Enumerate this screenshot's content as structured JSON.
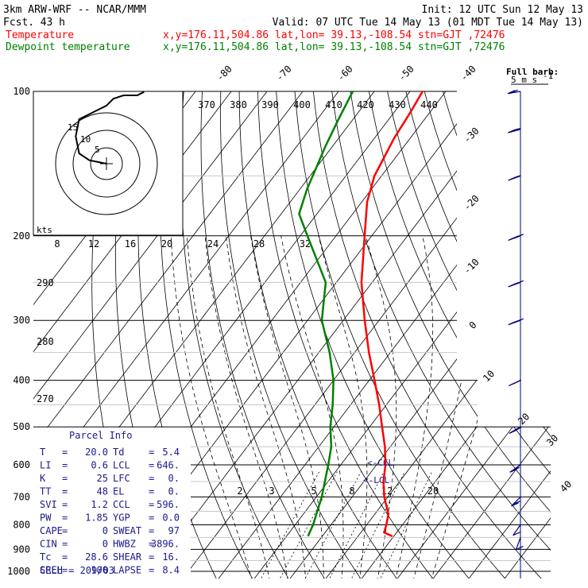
{
  "header": {
    "title": "3km ARW-WRF -- NCAR/MMM",
    "init": "Init: 12 UTC Sun 12 May 13",
    "fcst_label": "Fcst.",
    "fcst_value": "43 h",
    "valid": "Valid: 07 UTC Tue 14 May 13 (01 MDT Tue 14 May 13)",
    "temp_label": "Temperature",
    "dew_label": "Dewpoint temperature",
    "temp_info": "x,y=176.11,504.86   lat,lon= 39.13,-108.54  stn=GJT ,72476",
    "dew_info": "x,y=176.11,504.86   lat,lon= 39.13,-108.54  stn=GJT ,72476"
  },
  "barb_legend": {
    "line1": "Full barb:",
    "line2": "5 m s",
    "sup": "-1"
  },
  "hodograph": {
    "units_label": "kts",
    "ring_labels": [
      "5",
      "10",
      "15"
    ],
    "trace_uv": [
      [
        0,
        0
      ],
      [
        5,
        -1
      ],
      [
        8,
        -3
      ],
      [
        9,
        -8
      ],
      [
        8,
        -13
      ],
      [
        4,
        -15
      ],
      [
        0,
        -17
      ],
      [
        -2,
        -19
      ],
      [
        -5,
        -20
      ],
      [
        -9,
        -20
      ],
      [
        -11,
        -21
      ]
    ]
  },
  "colors": {
    "temperature": "#ff0000",
    "dewpoint": "#008000",
    "grid": "#000000",
    "moist": "#000000",
    "panel_text": "#1a1a8c",
    "barbs": "#000080"
  },
  "chart_data": {
    "type": "line",
    "title": "Skew-T log-P sounding",
    "pressure_levels": [
      100,
      200,
      300,
      400,
      500,
      600,
      700,
      800,
      900,
      1000
    ],
    "temperature_axis_labels": [
      "-80",
      "-70",
      "-60",
      "-50",
      "-40",
      "-30",
      "-20",
      "-10",
      "0",
      "10",
      "20",
      "30",
      "40"
    ],
    "theta_labels": [
      "370",
      "380",
      "390",
      "400",
      "410",
      "420",
      "430",
      "440"
    ],
    "theta_e_labels": [
      "8",
      "12",
      "16",
      "20",
      "24",
      "28",
      "32"
    ],
    "mixing_ratio_labels": [
      "2",
      "3",
      "5",
      "8",
      "12",
      "20"
    ],
    "dry_adiabat_labels": [
      "290",
      "280",
      "270"
    ],
    "lcl_label": "<-LCL",
    "ccl_label": "<-CCL",
    "series": [
      {
        "name": "Temperature",
        "color": "#ff0000",
        "points": [
          [
            845,
            19.6
          ],
          [
            830,
            16.5
          ],
          [
            800,
            15.5
          ],
          [
            760,
            13.8
          ],
          [
            700,
            9.0
          ],
          [
            650,
            5.5
          ],
          [
            600,
            2.5
          ],
          [
            550,
            -1.5
          ],
          [
            500,
            -6.5
          ],
          [
            450,
            -12.0
          ],
          [
            400,
            -18.5
          ],
          [
            350,
            -26.0
          ],
          [
            300,
            -34.0
          ],
          [
            250,
            -43.0
          ],
          [
            200,
            -52.0
          ],
          [
            170,
            -58.5
          ],
          [
            150,
            -62.0
          ],
          [
            125,
            -64.5
          ],
          [
            110,
            -65.5
          ],
          [
            100,
            -66.5
          ]
        ]
      },
      {
        "name": "Dewpoint temperature",
        "color": "#008000",
        "points": [
          [
            845,
            -4.0
          ],
          [
            800,
            -5.0
          ],
          [
            700,
            -8.5
          ],
          [
            600,
            -13.5
          ],
          [
            550,
            -16.5
          ],
          [
            500,
            -21.0
          ],
          [
            450,
            -25.0
          ],
          [
            400,
            -30.0
          ],
          [
            350,
            -37.0
          ],
          [
            300,
            -46.0
          ],
          [
            250,
            -53.0
          ],
          [
            200,
            -68.0
          ],
          [
            180,
            -75.0
          ],
          [
            160,
            -78.0
          ],
          [
            130,
            -82.0
          ],
          [
            115,
            -84.0
          ],
          [
            100,
            -86.0
          ]
        ]
      }
    ],
    "winds": [
      {
        "p": 850,
        "dir": 200,
        "spd": 5
      },
      {
        "p": 800,
        "dir": 215,
        "spd": 8
      },
      {
        "p": 700,
        "dir": 225,
        "spd": 10
      },
      {
        "p": 600,
        "dir": 235,
        "spd": 12
      },
      {
        "p": 500,
        "dir": 240,
        "spd": 15
      },
      {
        "p": 400,
        "dir": 245,
        "spd": 18
      },
      {
        "p": 300,
        "dir": 250,
        "spd": 20
      },
      {
        "p": 250,
        "dir": 250,
        "spd": 20
      },
      {
        "p": 200,
        "dir": 250,
        "spd": 22
      },
      {
        "p": 150,
        "dir": 250,
        "spd": 18
      },
      {
        "p": 120,
        "dir": 255,
        "spd": 15
      },
      {
        "p": 100,
        "dir": 260,
        "spd": 10
      }
    ],
    "ylim": [
      1000,
      100
    ],
    "xlim": [
      -40,
      40
    ],
    "yscale": "log"
  },
  "parcel_info": {
    "title": "Parcel Info",
    "rows": [
      {
        "l1": "T",
        "v1": "20.0",
        "l2": "Td",
        "v2": "5.4"
      },
      {
        "l1": "LI",
        "v1": "0.6",
        "l2": "LCL",
        "v2": "646."
      },
      {
        "l1": "K",
        "v1": "25",
        "l2": "LFC",
        "v2": "0."
      },
      {
        "l1": "TT",
        "v1": "48",
        "l2": "EL",
        "v2": "0."
      },
      {
        "l1": "SVI",
        "v1": "1.2",
        "l2": "CCL",
        "v2": "596."
      },
      {
        "l1": "PW",
        "v1": "1.85",
        "l2": "YGP",
        "v2": "0.0"
      },
      {
        "l1": "CAPE",
        "v1": "0",
        "l2": "SWEAT",
        "v2": "97"
      },
      {
        "l1": "CIN",
        "v1": "0",
        "l2": "HWBZ",
        "v2": "3896."
      },
      {
        "l1": "Tc",
        "v1": "28.6",
        "l2": "SHEAR",
        "v2": "16."
      },
      {
        "l1": "SREH",
        "v1": "100",
        "l2": "LAPSE",
        "v2": "8.4"
      }
    ],
    "cell_line": "CELL = 209/03"
  }
}
